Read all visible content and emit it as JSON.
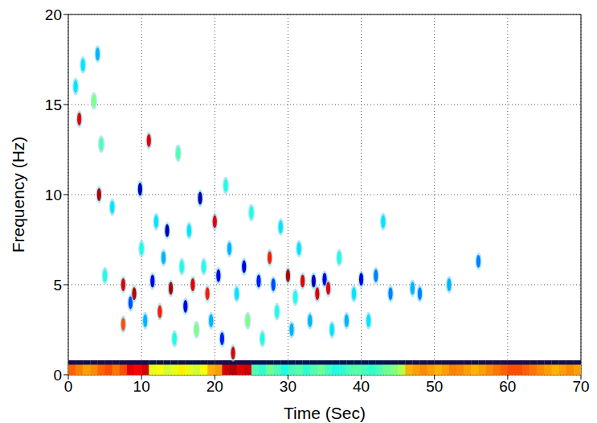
{
  "chart_data": {
    "type": "heatmap",
    "x_label": "Time (Sec)",
    "y_label": "Frequency (Hz)",
    "xlim": [
      0,
      70
    ],
    "xticks": [
      0,
      10,
      20,
      30,
      40,
      50,
      60,
      70
    ],
    "ylim": [
      0,
      20
    ],
    "yticks": [
      0,
      5,
      10,
      15,
      20
    ],
    "grid": true,
    "cells": [
      [
        1,
        16,
        0.35
      ],
      [
        1.5,
        14.2,
        0.9
      ],
      [
        2,
        17.2,
        0.35
      ],
      [
        3.5,
        15.2,
        0.5
      ],
      [
        4,
        17.8,
        0.3
      ],
      [
        4.2,
        10,
        0.95
      ],
      [
        4.5,
        12.8,
        0.45
      ],
      [
        5,
        5.5,
        0.4
      ],
      [
        6,
        9.3,
        0.35
      ],
      [
        7.5,
        5,
        0.9
      ],
      [
        7.5,
        2.8,
        0.8
      ],
      [
        8.5,
        4,
        0.2
      ],
      [
        9,
        4.5,
        0.95
      ],
      [
        9.8,
        10.3,
        0.05
      ],
      [
        10,
        7,
        0.4
      ],
      [
        10.5,
        3,
        0.3
      ],
      [
        11,
        13,
        0.9
      ],
      [
        11.5,
        5.2,
        0.1
      ],
      [
        12,
        8.5,
        0.35
      ],
      [
        12.5,
        3.5,
        0.85
      ],
      [
        13,
        6.5,
        0.3
      ],
      [
        13.5,
        8,
        0.05
      ],
      [
        14,
        4.8,
        0.95
      ],
      [
        14.5,
        2,
        0.4
      ],
      [
        15,
        12.3,
        0.45
      ],
      [
        15.5,
        6,
        0.4
      ],
      [
        16,
        3.8,
        0.1
      ],
      [
        16.5,
        8,
        0.35
      ],
      [
        17,
        5,
        0.9
      ],
      [
        17.5,
        2.5,
        0.5
      ],
      [
        18,
        9.8,
        0.05
      ],
      [
        18.5,
        6,
        0.4
      ],
      [
        19,
        4.5,
        0.85
      ],
      [
        19.5,
        3,
        0.3
      ],
      [
        20,
        8.5,
        0.9
      ],
      [
        20.5,
        5.5,
        0.1
      ],
      [
        21,
        2,
        0.15
      ],
      [
        21.5,
        10.5,
        0.4
      ],
      [
        22,
        7,
        0.3
      ],
      [
        22.5,
        1.2,
        0.9
      ],
      [
        23,
        4.5,
        0.35
      ],
      [
        24,
        6,
        0.1
      ],
      [
        24.5,
        3,
        0.5
      ],
      [
        25,
        9,
        0.4
      ],
      [
        26,
        5.2,
        0.15
      ],
      [
        26.5,
        2,
        0.4
      ],
      [
        27.5,
        6.5,
        0.85
      ],
      [
        28,
        5,
        0.2
      ],
      [
        28.5,
        3.5,
        0.4
      ],
      [
        29,
        8.2,
        0.35
      ],
      [
        30,
        5.5,
        0.95
      ],
      [
        30.5,
        2.5,
        0.3
      ],
      [
        31,
        4.3,
        0.4
      ],
      [
        31.5,
        7,
        0.35
      ],
      [
        32,
        5.2,
        0.9
      ],
      [
        33,
        3,
        0.3
      ],
      [
        33.5,
        5.2,
        0.05
      ],
      [
        34,
        4.5,
        0.9
      ],
      [
        35,
        5.3,
        0.1
      ],
      [
        35.5,
        4.8,
        0.9
      ],
      [
        36,
        2.5,
        0.35
      ],
      [
        37,
        6.5,
        0.4
      ],
      [
        38,
        3,
        0.3
      ],
      [
        39,
        4.5,
        0.35
      ],
      [
        40,
        5.3,
        0.1
      ],
      [
        41,
        3,
        0.35
      ],
      [
        42,
        5.5,
        0.25
      ],
      [
        43,
        8.5,
        0.35
      ],
      [
        44,
        4.5,
        0.25
      ],
      [
        47,
        4.8,
        0.3
      ],
      [
        48,
        4.5,
        0.25
      ],
      [
        52,
        5,
        0.3
      ],
      [
        56,
        6.3,
        0.25
      ]
    ],
    "band": {
      "f_top": 0.8,
      "t": [
        0,
        1,
        2,
        3,
        4,
        5,
        6,
        7,
        8,
        9,
        10,
        11,
        12,
        13,
        14,
        15,
        16,
        17,
        18,
        19,
        20,
        21,
        22,
        23,
        24,
        25,
        26,
        27,
        28,
        29,
        30,
        31,
        32,
        33,
        34,
        35,
        36,
        37,
        38,
        39,
        40,
        41,
        42,
        43,
        44,
        45,
        46,
        47,
        48,
        49,
        50,
        51,
        52,
        53,
        54,
        55,
        56,
        57,
        58,
        59,
        60,
        61,
        62,
        63,
        64,
        65,
        66,
        67,
        68,
        69
      ],
      "values": [
        0.78,
        0.75,
        0.72,
        0.74,
        0.78,
        0.8,
        0.76,
        0.8,
        0.9,
        0.88,
        0.92,
        0.6,
        0.62,
        0.58,
        0.6,
        0.64,
        0.6,
        0.58,
        0.62,
        0.7,
        0.72,
        0.92,
        0.95,
        0.9,
        0.92,
        0.45,
        0.42,
        0.48,
        0.45,
        0.4,
        0.44,
        0.46,
        0.42,
        0.45,
        0.48,
        0.44,
        0.4,
        0.42,
        0.45,
        0.46,
        0.44,
        0.42,
        0.45,
        0.48,
        0.5,
        0.55,
        0.7,
        0.72,
        0.74,
        0.72,
        0.7,
        0.72,
        0.75,
        0.74,
        0.72,
        0.7,
        0.72,
        0.74,
        0.76,
        0.78,
        0.8,
        0.8,
        0.78,
        0.76,
        0.74,
        0.72,
        0.7,
        0.72,
        0.74,
        0.72
      ]
    }
  }
}
